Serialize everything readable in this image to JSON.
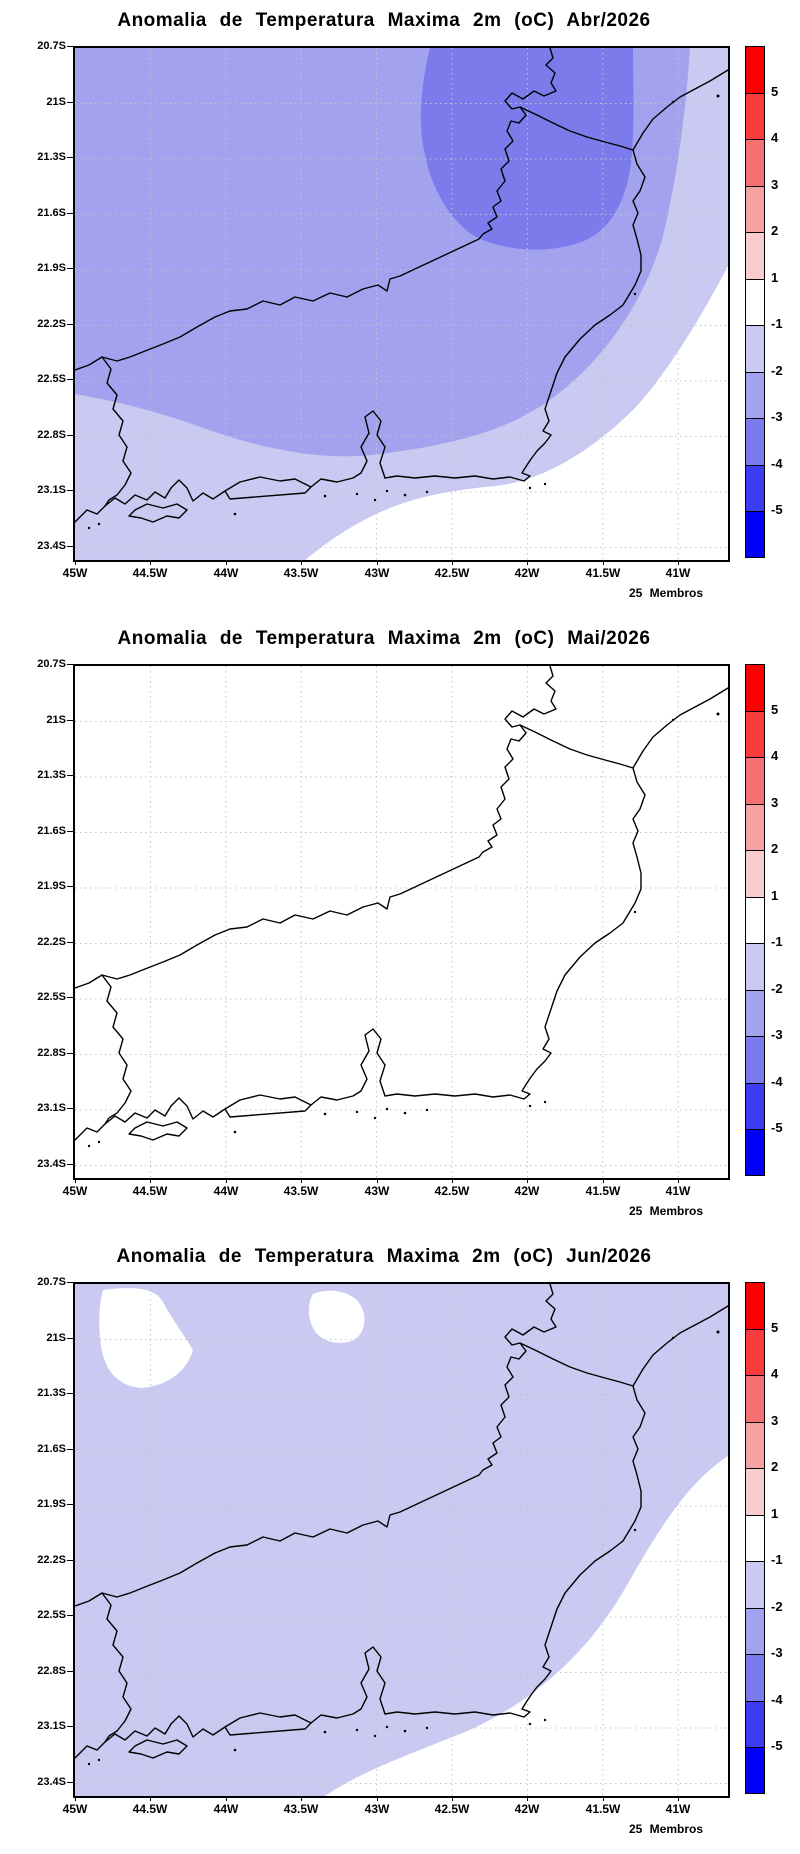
{
  "panels": [
    {
      "title": "Anomalia de Temperatura Maxima 2m (oC) Abr/2026",
      "members_label": "25 Membros"
    },
    {
      "title": "Anomalia de Temperatura Maxima 2m (oC) Mai/2026",
      "members_label": "25 Membros"
    },
    {
      "title": "Anomalia de Temperatura Maxima 2m (oC) Jun/2026",
      "members_label": "25 Membros"
    }
  ],
  "axes": {
    "x_ticks": [
      "45W",
      "44.5W",
      "44W",
      "43.5W",
      "43W",
      "42.5W",
      "42W",
      "41.5W",
      "41W"
    ],
    "y_ticks": [
      "20.7S",
      "21S",
      "21.3S",
      "21.6S",
      "21.9S",
      "22.2S",
      "22.5S",
      "22.8S",
      "23.1S",
      "23.4S"
    ]
  },
  "colorbar": {
    "labels": [
      "5",
      "4",
      "3",
      "2",
      "1",
      "-1",
      "-2",
      "-3",
      "-4",
      "-5"
    ],
    "colors": [
      "#fa0000",
      "#fa3c3c",
      "#f57171",
      "#f5a2a2",
      "#f9cdcd",
      "#ffffff",
      "#c9c9f2",
      "#a2a2ee",
      "#7b7bec",
      "#3c3cf2",
      "#0000fa"
    ]
  },
  "chart_data": {
    "type": "filled_contour_map",
    "variable": "Anomalia de Temperatura Maxima 2m (oC)",
    "ensemble_label": "25 Membros",
    "months": [
      "Abr/2026",
      "Mai/2026",
      "Jun/2026"
    ],
    "lon_ticks": [
      "45W",
      "44.5W",
      "44W",
      "43.5W",
      "43W",
      "42.5W",
      "42W",
      "41.5W",
      "41W"
    ],
    "lat_ticks": [
      "20.7S",
      "21S",
      "21.3S",
      "21.6S",
      "21.9S",
      "22.2S",
      "22.5S",
      "22.8S",
      "23.1S",
      "23.4S"
    ],
    "lon_range_deg_west": [
      45.0,
      40.7
    ],
    "lat_range_deg_south": [
      20.7,
      23.47
    ],
    "contour_levels_degC": [
      -5,
      -4,
      -3,
      -2,
      -1,
      1,
      2,
      3,
      4,
      5
    ],
    "palette_ranges": [
      {
        "range": "> 5",
        "color": "#fa0000"
      },
      {
        "range": "4 to 5",
        "color": "#fa3c3c"
      },
      {
        "range": "3 to 4",
        "color": "#f57171"
      },
      {
        "range": "2 to 3",
        "color": "#f5a2a2"
      },
      {
        "range": "1 to 2",
        "color": "#f9cdcd"
      },
      {
        "range": "-1 to 1",
        "color": "#ffffff"
      },
      {
        "range": "-2 to -1",
        "color": "#c9c9f2"
      },
      {
        "range": "-3 to -2",
        "color": "#a2a2ee"
      },
      {
        "range": "-4 to -3",
        "color": "#7b7bec"
      },
      {
        "range": "-5 to -4",
        "color": "#3c3cf2"
      },
      {
        "range": "< -5",
        "color": "#0000fa"
      }
    ],
    "panels": [
      {
        "month": "Abr/2026",
        "field_summary": [
          {
            "range_degC": "-4 to -3",
            "region": "north-central interior blob, ~42.7W-41.3W / 20.7S-21.9S"
          },
          {
            "range_degC": "-3 to -2",
            "region": "northwest and northern half of domain"
          },
          {
            "range_degC": "-2 to -1",
            "region": "central diagonal band, southwest coast and strip along eastern edge"
          },
          {
            "range_degC": "-1 to 1",
            "region": "southeast corner and lower eastern edge (white)"
          }
        ]
      },
      {
        "month": "Mai/2026",
        "field_summary": [
          {
            "range_degC": "-1 to 1",
            "region": "entire domain (no anomaly shading)"
          }
        ]
      },
      {
        "month": "Jun/2026",
        "field_summary": [
          {
            "range_degC": "-2 to -1",
            "region": "most of domain"
          },
          {
            "range_degC": "-1 to 1",
            "region": "southeast/east coastal sector and two small pockets near 44.6W and 43.5W at ~20.8S"
          }
        ]
      }
    ]
  }
}
